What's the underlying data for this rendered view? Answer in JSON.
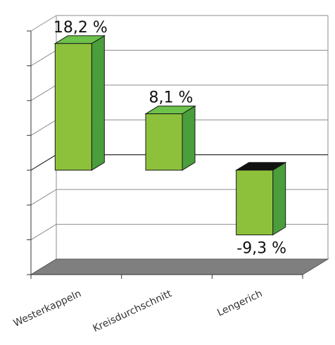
{
  "chart_data": {
    "type": "bar",
    "categories": [
      "Westerkappeln",
      "Kreisdurchschnitt",
      "Lengerich"
    ],
    "values": [
      18.2,
      8.1,
      -9.3
    ],
    "data_labels": [
      "18,2 %",
      "8,1 %",
      "-9,3 %"
    ],
    "title": "",
    "xlabel": "",
    "ylabel": "",
    "ylim": [
      -15,
      20
    ],
    "grid": true,
    "legend": "none",
    "three_d": true,
    "colors": {
      "bar_front": "#8dc13b",
      "bar_side": "#4a9e3c",
      "bar_top": "#6cc24a",
      "bar_top_negative": "#111111",
      "bar_edge": "#1a1a1a",
      "floor": "#7f7f7f",
      "grid": "#8c8c8c"
    }
  }
}
